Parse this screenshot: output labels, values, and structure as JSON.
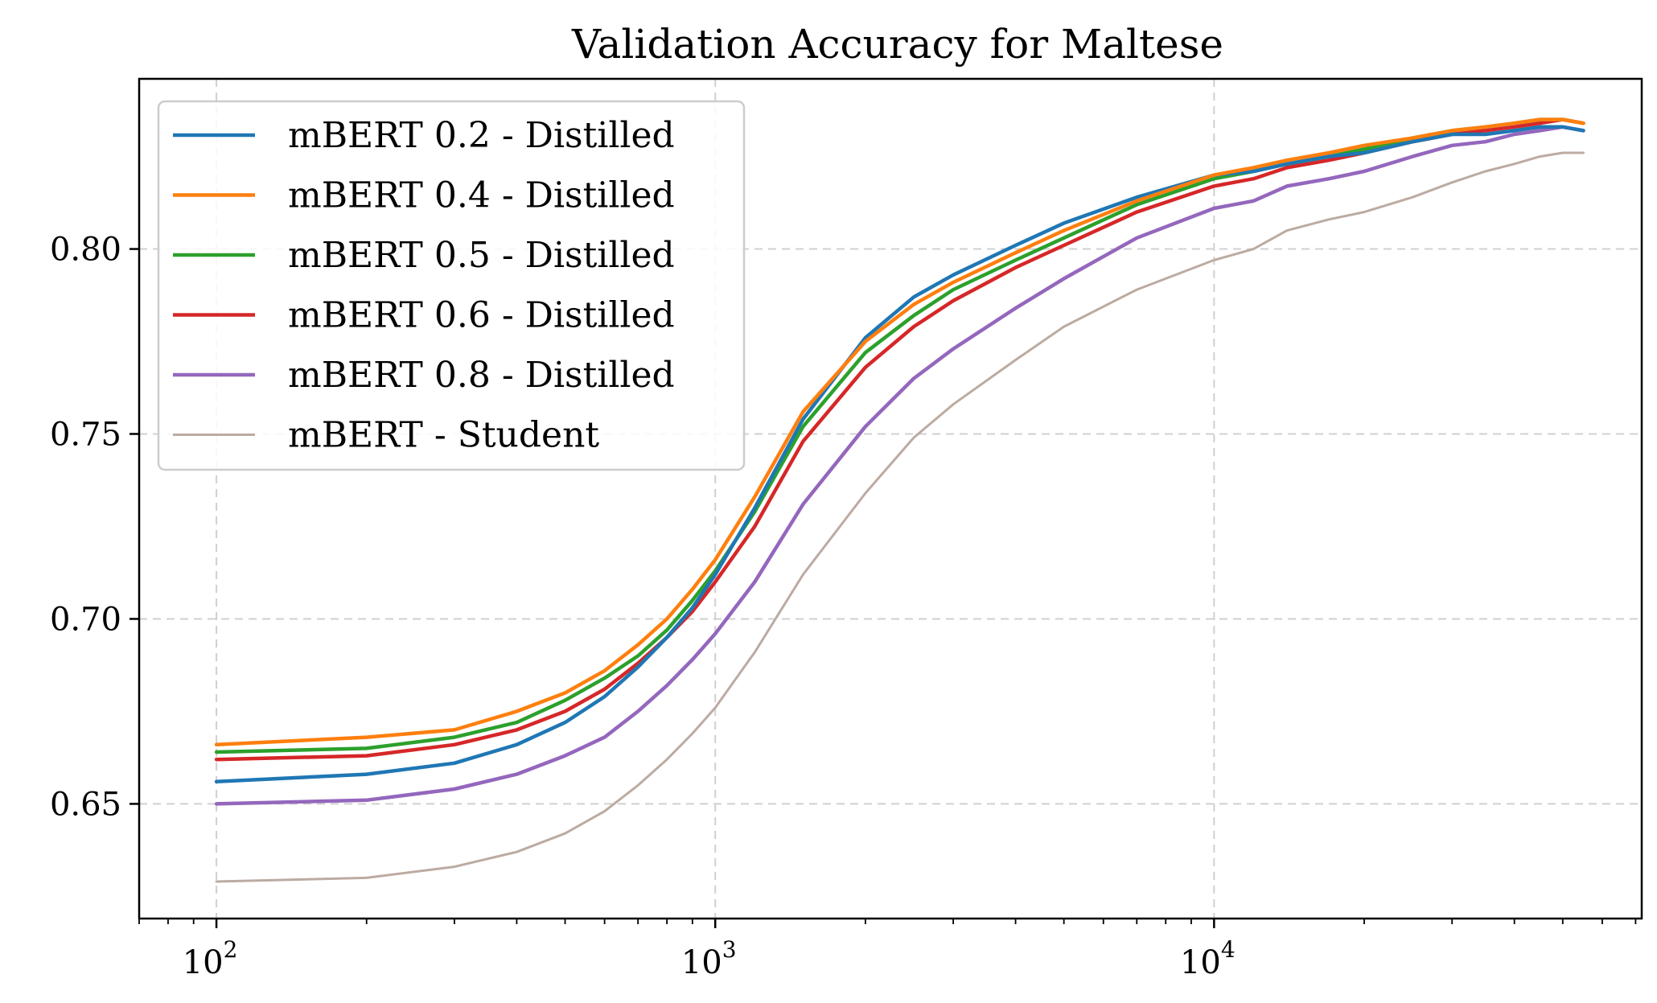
{
  "chart_data": {
    "type": "line",
    "title": "Validation Accuracy for Maltese",
    "xlabel": "",
    "ylabel": "",
    "xscale": "log",
    "xlim": [
      70,
      72000
    ],
    "ylim": [
      0.619,
      0.846
    ],
    "grid": true,
    "legend_position": "upper-left",
    "x_ticks": [
      100,
      1000,
      10000
    ],
    "x_tick_labels": [
      {
        "base": "10",
        "exp": "2"
      },
      {
        "base": "10",
        "exp": "3"
      },
      {
        "base": "10",
        "exp": "4"
      }
    ],
    "y_ticks": [
      0.65,
      0.7,
      0.75,
      0.8
    ],
    "y_tick_labels": [
      "0.65",
      "0.70",
      "0.75",
      "0.80"
    ],
    "x": [
      100,
      200,
      300,
      400,
      500,
      600,
      700,
      800,
      900,
      1000,
      1200,
      1500,
      2000,
      2500,
      3000,
      4000,
      5000,
      7000,
      10000,
      12000,
      14000,
      17000,
      20000,
      25000,
      30000,
      35000,
      40000,
      45000,
      50000,
      55000
    ],
    "series": [
      {
        "name": "mBERT 0.2 - Distilled",
        "color": "#1f77b4",
        "width": 4.5,
        "values": [
          0.656,
          0.658,
          0.661,
          0.666,
          0.672,
          0.679,
          0.687,
          0.695,
          0.703,
          0.712,
          0.73,
          0.754,
          0.776,
          0.787,
          0.793,
          0.801,
          0.807,
          0.814,
          0.82,
          0.821,
          0.823,
          0.825,
          0.826,
          0.829,
          0.831,
          0.831,
          0.832,
          0.833,
          0.833,
          0.832
        ]
      },
      {
        "name": "mBERT 0.4 - Distilled",
        "color": "#ff7f0e",
        "width": 4.5,
        "values": [
          0.666,
          0.668,
          0.67,
          0.675,
          0.68,
          0.686,
          0.693,
          0.7,
          0.708,
          0.716,
          0.733,
          0.756,
          0.775,
          0.785,
          0.791,
          0.799,
          0.805,
          0.813,
          0.82,
          0.822,
          0.824,
          0.826,
          0.828,
          0.83,
          0.832,
          0.833,
          0.834,
          0.835,
          0.835,
          0.834
        ]
      },
      {
        "name": "mBERT 0.5 - Distilled",
        "color": "#2ca02c",
        "width": 4.5,
        "values": [
          0.664,
          0.665,
          0.668,
          0.672,
          0.678,
          0.684,
          0.69,
          0.697,
          0.705,
          0.713,
          0.729,
          0.752,
          0.772,
          0.782,
          0.789,
          0.797,
          0.803,
          0.812,
          0.819,
          0.821,
          0.823,
          0.825,
          0.827,
          0.83,
          0.832,
          0.833,
          0.834,
          0.835,
          0.835,
          0.834
        ]
      },
      {
        "name": "mBERT 0.6 - Distilled",
        "color": "#d62728",
        "width": 4.5,
        "values": [
          0.662,
          0.663,
          0.666,
          0.67,
          0.675,
          0.681,
          0.688,
          0.695,
          0.702,
          0.71,
          0.725,
          0.748,
          0.768,
          0.779,
          0.786,
          0.795,
          0.801,
          0.81,
          0.817,
          0.819,
          0.822,
          0.824,
          0.826,
          0.829,
          0.831,
          0.832,
          0.833,
          0.834,
          0.835,
          0.834
        ]
      },
      {
        "name": "mBERT 0.8 - Distilled",
        "color": "#9467bd",
        "width": 4.5,
        "values": [
          0.65,
          0.651,
          0.654,
          0.658,
          0.663,
          0.668,
          0.675,
          0.682,
          0.689,
          0.696,
          0.71,
          0.731,
          0.752,
          0.765,
          0.773,
          0.784,
          0.792,
          0.803,
          0.811,
          0.813,
          0.817,
          0.819,
          0.821,
          0.825,
          0.828,
          0.829,
          0.831,
          0.832,
          0.833,
          0.832
        ]
      },
      {
        "name": "mBERT - Student",
        "color": "#bcaba2",
        "width": 3,
        "values": [
          0.629,
          0.63,
          0.633,
          0.637,
          0.642,
          0.648,
          0.655,
          0.662,
          0.669,
          0.676,
          0.691,
          0.712,
          0.734,
          0.749,
          0.758,
          0.77,
          0.779,
          0.789,
          0.797,
          0.8,
          0.805,
          0.808,
          0.81,
          0.814,
          0.818,
          0.821,
          0.823,
          0.825,
          0.826,
          0.826
        ]
      }
    ]
  }
}
